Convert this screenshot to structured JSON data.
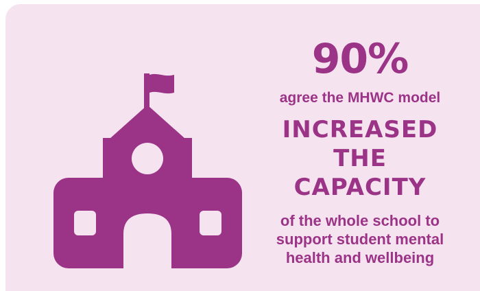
{
  "stat": {
    "value": "90%"
  },
  "lead_text": "agree the MHWC model",
  "headline_lines": [
    "INCREASED",
    "THE",
    "CAPACITY"
  ],
  "tail_lines": [
    "of the whole school to",
    "support student mental",
    "health and wellbeing"
  ],
  "colors": {
    "background": "#f5e3f0",
    "accent": "#9b3386"
  },
  "icon": "school-building-icon"
}
